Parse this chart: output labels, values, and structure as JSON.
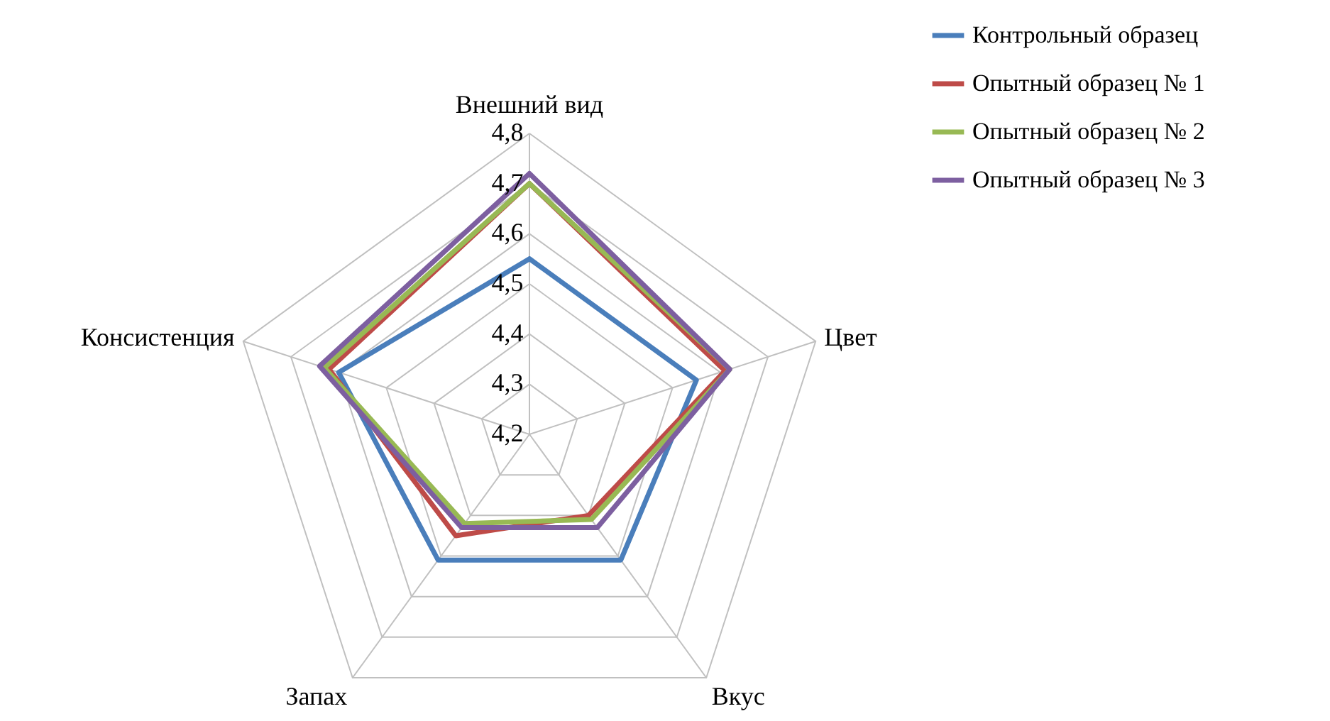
{
  "chart_data": {
    "type": "radar",
    "categories": [
      "Внешний вид",
      "Цвет",
      "Вкус",
      "Запах",
      "Консистенция"
    ],
    "ylim": [
      4.2,
      4.8
    ],
    "yticks": [
      {
        "value": 4.2,
        "label": "4,2"
      },
      {
        "value": 4.3,
        "label": "4,3"
      },
      {
        "value": 4.4,
        "label": "4,4"
      },
      {
        "value": 4.5,
        "label": "4,5"
      },
      {
        "value": 4.6,
        "label": "4,6"
      },
      {
        "value": 4.7,
        "label": "4,7"
      },
      {
        "value": 4.8,
        "label": "4,8"
      }
    ],
    "grid": true,
    "legend": "top right",
    "series": [
      {
        "name": "Контрольный образец",
        "color": "#4a7ebb",
        "values": [
          4.55,
          4.55,
          4.51,
          4.51,
          4.6
        ]
      },
      {
        "name": "Опытный образец № 1",
        "color": "#be4b48",
        "values": [
          4.7,
          4.61,
          4.4,
          4.45,
          4.62
        ]
      },
      {
        "name": "Опытный образец № 2",
        "color": "#98b954",
        "values": [
          4.7,
          4.62,
          4.41,
          4.42,
          4.63
        ]
      },
      {
        "name": "Опытный образец № 3",
        "color": "#7d5fa0",
        "values": [
          4.72,
          4.62,
          4.43,
          4.43,
          4.64
        ]
      }
    ]
  }
}
